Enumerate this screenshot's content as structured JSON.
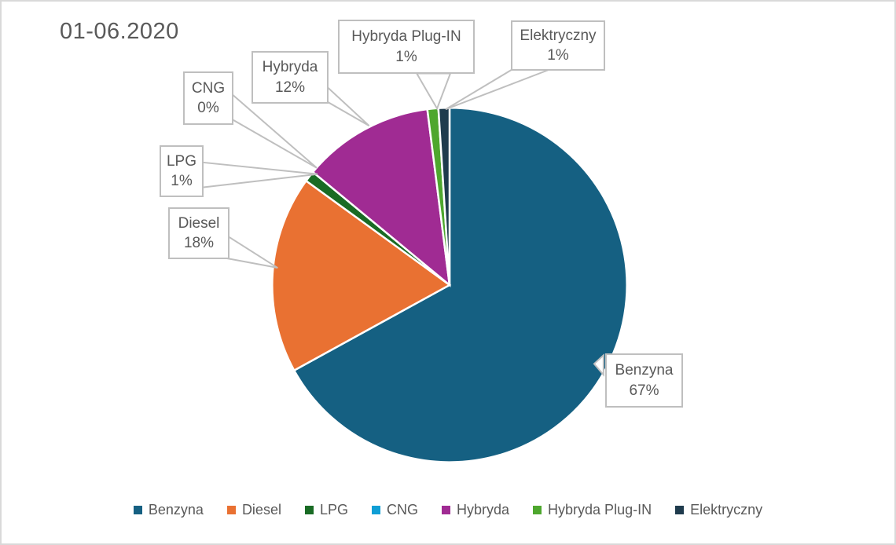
{
  "chart_data": {
    "type": "pie",
    "title": "01-06.2020",
    "unit": "%",
    "legend_position": "bottom",
    "slices": [
      {
        "label": "Benzyna",
        "value": 67,
        "pct_label": "67%",
        "color": "#156082"
      },
      {
        "label": "Diesel",
        "value": 18,
        "pct_label": "18%",
        "color": "#E97132"
      },
      {
        "label": "LPG",
        "value": 1,
        "pct_label": "1%",
        "color": "#196B24"
      },
      {
        "label": "CNG",
        "value": 0,
        "pct_label": "0%",
        "color": "#0F9ED5"
      },
      {
        "label": "Hybryda",
        "value": 12,
        "pct_label": "12%",
        "color": "#A02B93"
      },
      {
        "label": "Hybryda Plug-IN",
        "value": 1,
        "pct_label": "1%",
        "color": "#4EA72E"
      },
      {
        "label": "Elektryczny",
        "value": 1,
        "pct_label": "1%",
        "color": "#1F3B4D"
      }
    ],
    "style": {
      "text_color": "#595959",
      "callout_border": "#BFBFBF",
      "leader_color": "#BFBFBF",
      "slice_stroke": "#FFFFFF",
      "background": "#FFFFFF",
      "frame_border": "#D9D9D9"
    }
  }
}
